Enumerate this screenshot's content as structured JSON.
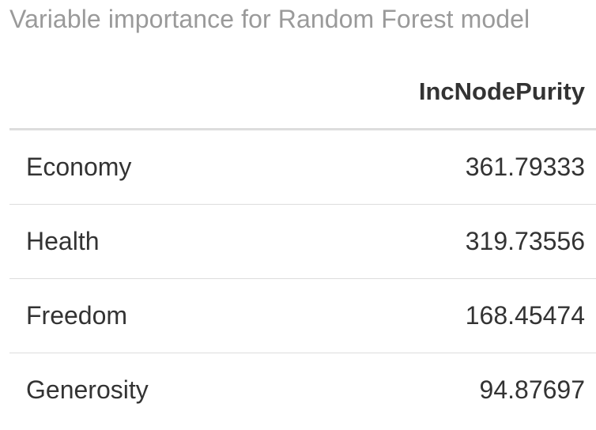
{
  "caption": "Variable importance for Random Forest model",
  "table": {
    "header": {
      "name_col": "",
      "value_col": "IncNodePurity"
    },
    "rows": [
      {
        "name": "Economy",
        "value": "361.79333"
      },
      {
        "name": "Health",
        "value": "319.73556"
      },
      {
        "name": "Freedom",
        "value": "168.45474"
      },
      {
        "name": "Generosity",
        "value": "94.87697"
      }
    ]
  }
}
